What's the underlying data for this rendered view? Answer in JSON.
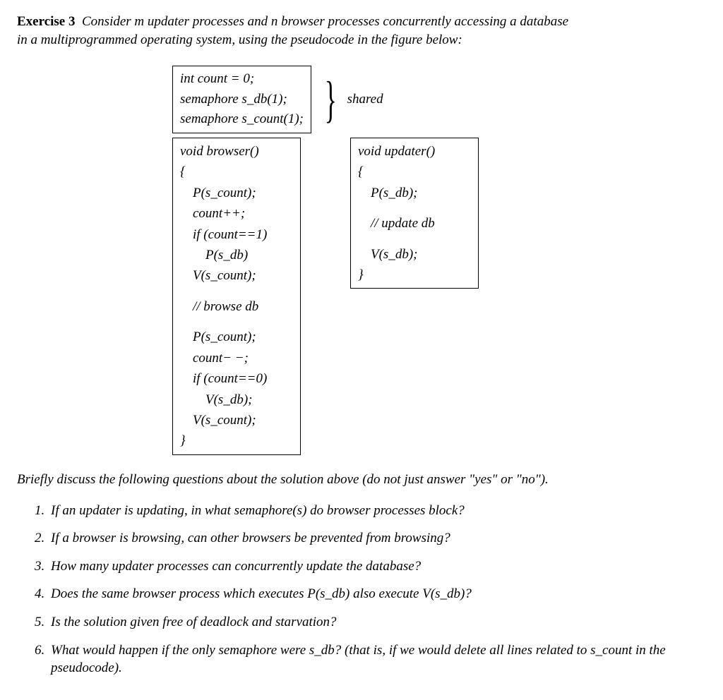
{
  "header": {
    "label": "Exercise 3",
    "intro_a": "Consider m updater processes and n browser processes concurrently accessing a database",
    "intro_b": "in a multiprogrammed operating system, using the pseudocode in the figure below:"
  },
  "shared": {
    "l1": "int count = 0;",
    "l2": "semaphore s_db(1);",
    "l3": "semaphore s_count(1);",
    "label": "shared"
  },
  "browser": {
    "sig": "void browser()",
    "open": "{",
    "b1": "P(s_count);",
    "b2": "count++;",
    "b3": "if (count==1)",
    "b4": "P(s_db)",
    "b5": "V(s_count);",
    "mid": "// browse db",
    "c1": "P(s_count);",
    "c2": "count− −;",
    "c3": "if (count==0)",
    "c4": "V(s_db);",
    "c5": "V(s_count);",
    "close": "}"
  },
  "updater": {
    "sig": "void updater()",
    "open": "{",
    "u1": "P(s_db);",
    "mid": "// update db",
    "u2": "V(s_db);",
    "close": "}"
  },
  "qintro": "Briefly discuss the following questions about the solution above (do not just answer \"yes\" or \"no\").",
  "questions": {
    "q1": "If an updater is updating, in what semaphore(s) do browser processes block?",
    "q2": "If a browser is browsing, can other browsers be prevented from browsing?",
    "q3": "How many updater processes can concurrently update the database?",
    "q4": "Does the same browser process which executes P(s_db) also execute V(s_db)?",
    "q5": "Is the solution given free of deadlock and starvation?",
    "q6": "What would happen if the only semaphore were s_db? (that is, if we would delete all lines related to s_count in the pseudocode)."
  }
}
